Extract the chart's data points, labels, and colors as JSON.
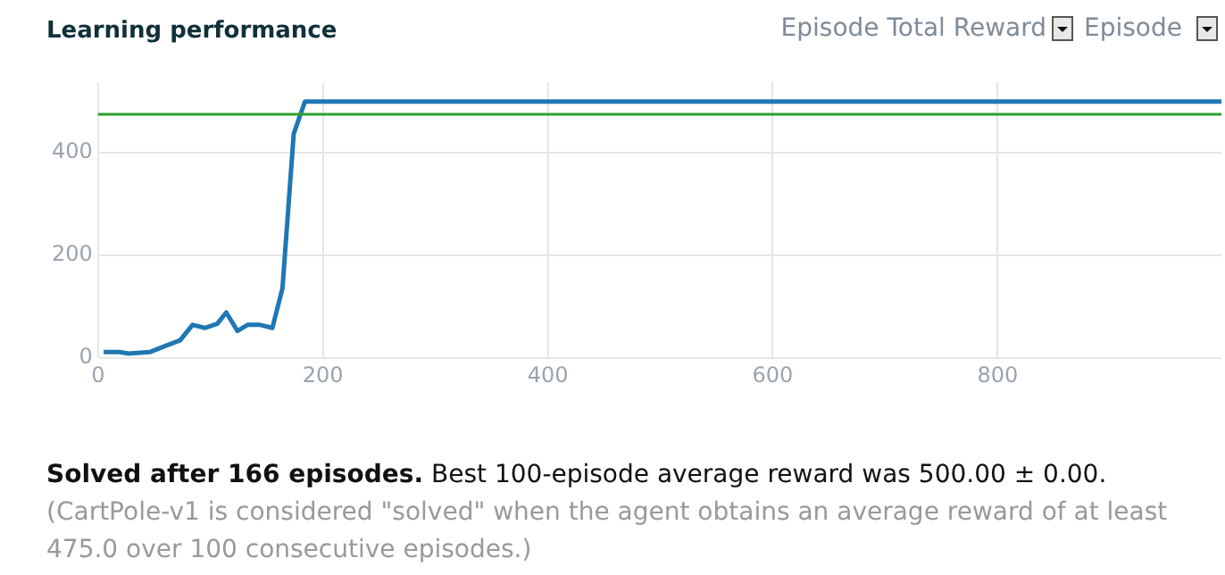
{
  "chart_data": {
    "type": "line",
    "title": "Learning performance",
    "xlabel": "Episode",
    "ylabel": "Episode Total Reward",
    "x": [
      5,
      19,
      27,
      46,
      60,
      73,
      84,
      95,
      106,
      114,
      124,
      133,
      144,
      155,
      164,
      174,
      184,
      999
    ],
    "series": [
      {
        "color": "#1f77b4",
        "values": [
          12,
          12,
          9,
          12,
          24,
          35,
          65,
          59,
          67,
          89,
          53,
          65,
          65,
          59,
          136,
          437,
          500,
          500
        ]
      }
    ],
    "xlim": [
      0,
      999
    ],
    "xticks": [
      0,
      200,
      400,
      600,
      800
    ],
    "ylim": [
      0,
      537
    ],
    "yticks": [
      0,
      200,
      400
    ],
    "grid": true,
    "legend": false,
    "marker": "none",
    "line_style": "solid",
    "ref_lines": [
      {
        "axis": "y",
        "value": 475,
        "color": "#2ca02c"
      }
    ],
    "annotations": [
      "Solved after 166 episodes.",
      "Best 100-episode average reward was 500.00 ± 0.00.",
      "(CartPole-v1 is considered \"solved\" when the agent obtains an average reward of at least 475.0 over 100 consecutive episodes.)"
    ]
  }
}
